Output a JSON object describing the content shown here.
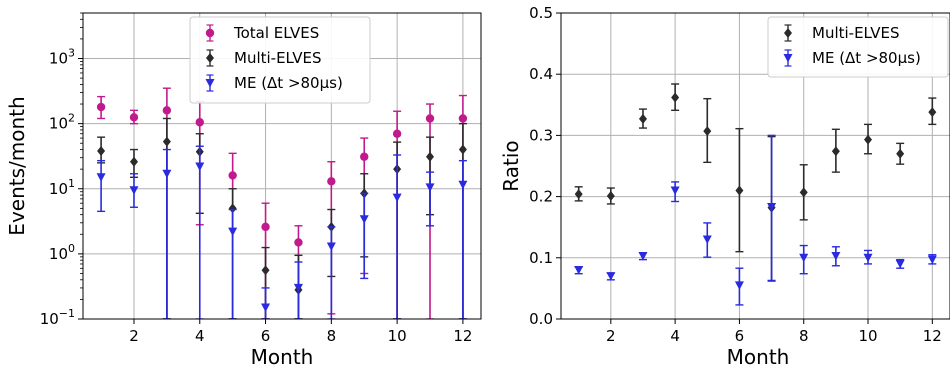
{
  "chart_data": [
    {
      "type": "scatter",
      "panel": "left",
      "xlabel": "Month",
      "ylabel": "Events/month",
      "yscale": "log",
      "xlim": [
        0.45,
        12.55
      ],
      "ylim": [
        0.1,
        5000
      ],
      "xticks": [
        2,
        4,
        6,
        8,
        10,
        12
      ],
      "yticks": [
        {
          "v": 0.1,
          "base": "10",
          "exp": "−1"
        },
        {
          "v": 1,
          "base": "10",
          "exp": "0"
        },
        {
          "v": 10,
          "base": "10",
          "exp": "1"
        },
        {
          "v": 100,
          "base": "10",
          "exp": "2"
        },
        {
          "v": 1000,
          "base": "10",
          "exp": "3"
        }
      ],
      "grid": true,
      "legend_position": "top-center",
      "series": [
        {
          "name": "Total ELVES",
          "color": "#c01a8c",
          "marker": "circle",
          "x": [
            1,
            2,
            3,
            4,
            5,
            6,
            7,
            8,
            9,
            10,
            11,
            12
          ],
          "y": [
            180,
            125,
            160,
            105,
            16,
            2.6,
            1.5,
            13,
            31,
            70,
            120,
            120
          ],
          "err_low": [
            120,
            100,
            0.1,
            2.8,
            0.1,
            0.1,
            0.1,
            0.12,
            0.5,
            0.1,
            0.1,
            0.1
          ],
          "err_high": [
            260,
            160,
            350,
            220,
            35,
            6,
            2.7,
            26,
            60,
            155,
            200,
            270
          ]
        },
        {
          "name": "Multi-ELVES",
          "color": "#2b2b2b",
          "marker": "diamond",
          "x": [
            1,
            2,
            3,
            4,
            5,
            6,
            7,
            8,
            9,
            10,
            11,
            12
          ],
          "y": [
            38,
            26,
            53,
            37,
            5.0,
            0.56,
            0.28,
            2.6,
            8.5,
            20,
            31,
            40
          ],
          "err_low": [
            25,
            15,
            0.1,
            4.2,
            0.1,
            0.1,
            0.1,
            0.45,
            0.9,
            0.1,
            4,
            0.1
          ],
          "err_high": [
            62,
            40,
            120,
            70,
            10,
            1.25,
            0.95,
            4.8,
            17,
            52,
            62,
            100
          ]
        },
        {
          "name": "ME (Δt >80μs)",
          "color": "#2a2ae0",
          "marker": "triangle_down",
          "x": [
            1,
            2,
            3,
            4,
            5,
            6,
            7,
            8,
            9,
            10,
            11,
            12
          ],
          "y": [
            15,
            9.5,
            17,
            22,
            2.2,
            0.15,
            0.3,
            1.3,
            3.4,
            7.3,
            10.5,
            11.5
          ],
          "err_low": [
            4.5,
            5.2,
            0.1,
            0.1,
            0.1,
            0.1,
            0.1,
            0.1,
            0.42,
            0.1,
            2.7,
            0.1
          ],
          "err_high": [
            27,
            17,
            40,
            45,
            4.8,
            0.3,
            0.75,
            2.6,
            8.5,
            33,
            18,
            27
          ]
        }
      ]
    },
    {
      "type": "scatter",
      "panel": "right",
      "xlabel": "Month",
      "ylabel": "Ratio",
      "xlim": [
        0.45,
        12.55
      ],
      "ylim": [
        0.0,
        0.5
      ],
      "xticks": [
        2,
        4,
        6,
        8,
        10,
        12
      ],
      "yticks": [
        "0.0",
        "0.1",
        "0.2",
        "0.3",
        "0.4",
        "0.5"
      ],
      "grid": true,
      "legend_position": "top-right",
      "series": [
        {
          "name": "Multi-ELVES",
          "color": "#2b2b2b",
          "marker": "diamond",
          "x": [
            1,
            2,
            3,
            4,
            5,
            6,
            7,
            8,
            9,
            10,
            11,
            12
          ],
          "y": [
            0.204,
            0.201,
            0.327,
            0.362,
            0.307,
            0.21,
            0.182,
            0.207,
            0.274,
            0.293,
            0.27,
            0.338
          ],
          "err_low": [
            0.193,
            0.188,
            0.312,
            0.341,
            0.256,
            0.11,
            0.062,
            0.162,
            0.24,
            0.27,
            0.253,
            0.318
          ],
          "err_high": [
            0.216,
            0.214,
            0.343,
            0.384,
            0.36,
            0.311,
            0.298,
            0.252,
            0.31,
            0.318,
            0.287,
            0.361
          ]
        },
        {
          "name": "ME (Δt >80μs)",
          "color": "#2a2ae0",
          "marker": "triangle_down",
          "x": [
            1,
            2,
            3,
            4,
            5,
            6,
            7,
            8,
            9,
            10,
            11,
            12
          ],
          "y": [
            0.08,
            0.07,
            0.103,
            0.21,
            0.13,
            0.055,
            0.183,
            0.1,
            0.103,
            0.1,
            0.09,
            0.097
          ],
          "err_low": [
            0.074,
            0.064,
            0.097,
            0.192,
            0.101,
            0.023,
            0.063,
            0.074,
            0.087,
            0.09,
            0.083,
            0.09
          ],
          "err_high": [
            0.085,
            0.075,
            0.108,
            0.224,
            0.157,
            0.083,
            0.3,
            0.12,
            0.118,
            0.112,
            0.097,
            0.105
          ]
        }
      ]
    }
  ]
}
